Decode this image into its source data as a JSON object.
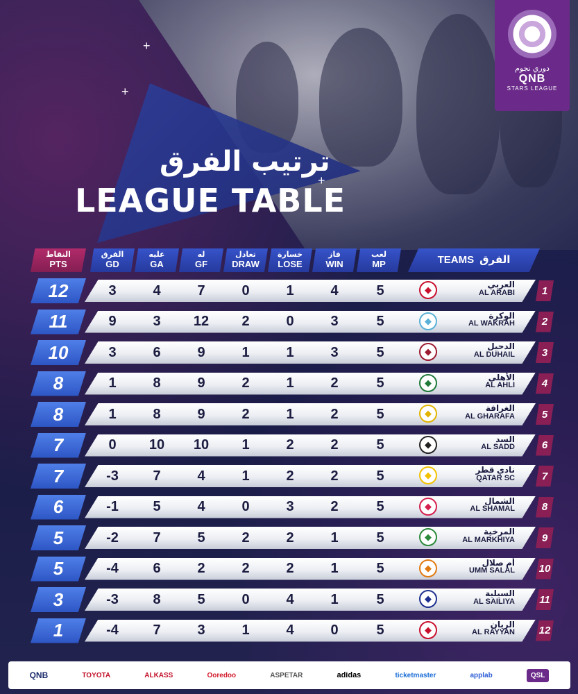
{
  "brand": {
    "league_ar": "دوري نجوم",
    "league_qnb": "QNB",
    "league_en": "STARS LEAGUE",
    "accent": "#6b2a8a",
    "header_blue": "#3653c9",
    "pts_pink": "#b12a6a"
  },
  "title": {
    "ar": "ترتيب الفرق",
    "en": "LEAGUE TABLE"
  },
  "headers": {
    "pts": {
      "ar": "النقاط",
      "en": "PTS"
    },
    "gd": {
      "ar": "الفرق",
      "en": "GD"
    },
    "ga": {
      "ar": "عليه",
      "en": "GA"
    },
    "gf": {
      "ar": "له",
      "en": "GF"
    },
    "draw": {
      "ar": "تعادل",
      "en": "DRAW"
    },
    "lose": {
      "ar": "خسارة",
      "en": "LOSE"
    },
    "win": {
      "ar": "فاز",
      "en": "WIN"
    },
    "mp": {
      "ar": "لعب",
      "en": "MP"
    },
    "teams": {
      "ar": "الفرق",
      "en": "TEAMS"
    }
  },
  "rows": [
    {
      "rank": "1",
      "pts": "12",
      "gd": "3",
      "ga": "4",
      "gf": "7",
      "draw": "0",
      "lose": "1",
      "win": "4",
      "mp": "5",
      "ar": "العربي",
      "en": "AL ARABI",
      "badge": "#c8102e"
    },
    {
      "rank": "2",
      "pts": "11",
      "gd": "9",
      "ga": "3",
      "gf": "12",
      "draw": "2",
      "lose": "0",
      "win": "3",
      "mp": "5",
      "ar": "الوكرة",
      "en": "AL WAKRAH",
      "badge": "#5ab0d6"
    },
    {
      "rank": "3",
      "pts": "10",
      "gd": "3",
      "ga": "6",
      "gf": "9",
      "draw": "1",
      "lose": "1",
      "win": "3",
      "mp": "5",
      "ar": "الدحيل",
      "en": "AL DUHAIL",
      "badge": "#9b1b30"
    },
    {
      "rank": "4",
      "pts": "8",
      "gd": "1",
      "ga": "8",
      "gf": "9",
      "draw": "2",
      "lose": "1",
      "win": "2",
      "mp": "5",
      "ar": "الأهلي",
      "en": "AL  AHLI",
      "badge": "#1f7a3a"
    },
    {
      "rank": "5",
      "pts": "8",
      "gd": "1",
      "ga": "8",
      "gf": "9",
      "draw": "2",
      "lose": "1",
      "win": "2",
      "mp": "5",
      "ar": "الغرافة",
      "en": "AL GHARAFA",
      "badge": "#e2b400"
    },
    {
      "rank": "6",
      "pts": "7",
      "gd": "0",
      "ga": "10",
      "gf": "10",
      "draw": "1",
      "lose": "2",
      "win": "2",
      "mp": "5",
      "ar": "السد",
      "en": "AL  SADD",
      "badge": "#222222"
    },
    {
      "rank": "7",
      "pts": "7",
      "gd": "-3",
      "ga": "7",
      "gf": "4",
      "draw": "1",
      "lose": "2",
      "win": "2",
      "mp": "5",
      "ar": "نادي قطر",
      "en": "QATAR SC",
      "badge": "#f2c200"
    },
    {
      "rank": "8",
      "pts": "6",
      "gd": "-1",
      "ga": "5",
      "gf": "4",
      "draw": "0",
      "lose": "3",
      "win": "2",
      "mp": "5",
      "ar": "الشمال",
      "en": "AL SHAMAL",
      "badge": "#d6204f"
    },
    {
      "rank": "9",
      "pts": "5",
      "gd": "-2",
      "ga": "7",
      "gf": "5",
      "draw": "2",
      "lose": "2",
      "win": "1",
      "mp": "5",
      "ar": "المرخية",
      "en": "AL MARKHIYA",
      "badge": "#2a8a3a"
    },
    {
      "rank": "10",
      "pts": "5",
      "gd": "-4",
      "ga": "6",
      "gf": "2",
      "draw": "2",
      "lose": "2",
      "win": "1",
      "mp": "5",
      "ar": "أم صلال",
      "en": "UMM SALAL",
      "badge": "#e07a10"
    },
    {
      "rank": "11",
      "pts": "3",
      "gd": "-3",
      "ga": "8",
      "gf": "5",
      "draw": "0",
      "lose": "4",
      "win": "1",
      "mp": "5",
      "ar": "السيلية",
      "en": "AL SAILIYA",
      "badge": "#1c2f8f"
    },
    {
      "rank": "12",
      "pts": "1",
      "gd": "-4",
      "ga": "7",
      "gf": "3",
      "draw": "1",
      "lose": "4",
      "win": "0",
      "mp": "5",
      "ar": "الريان",
      "en": "AL RAYYAN",
      "badge": "#c8102e"
    }
  ],
  "sponsors": [
    "QNB",
    "TOYOTA",
    "ALKASS",
    "Ooredoo",
    "ASPETAR",
    "adidas",
    "ticketmaster",
    "applab",
    "QSL"
  ]
}
